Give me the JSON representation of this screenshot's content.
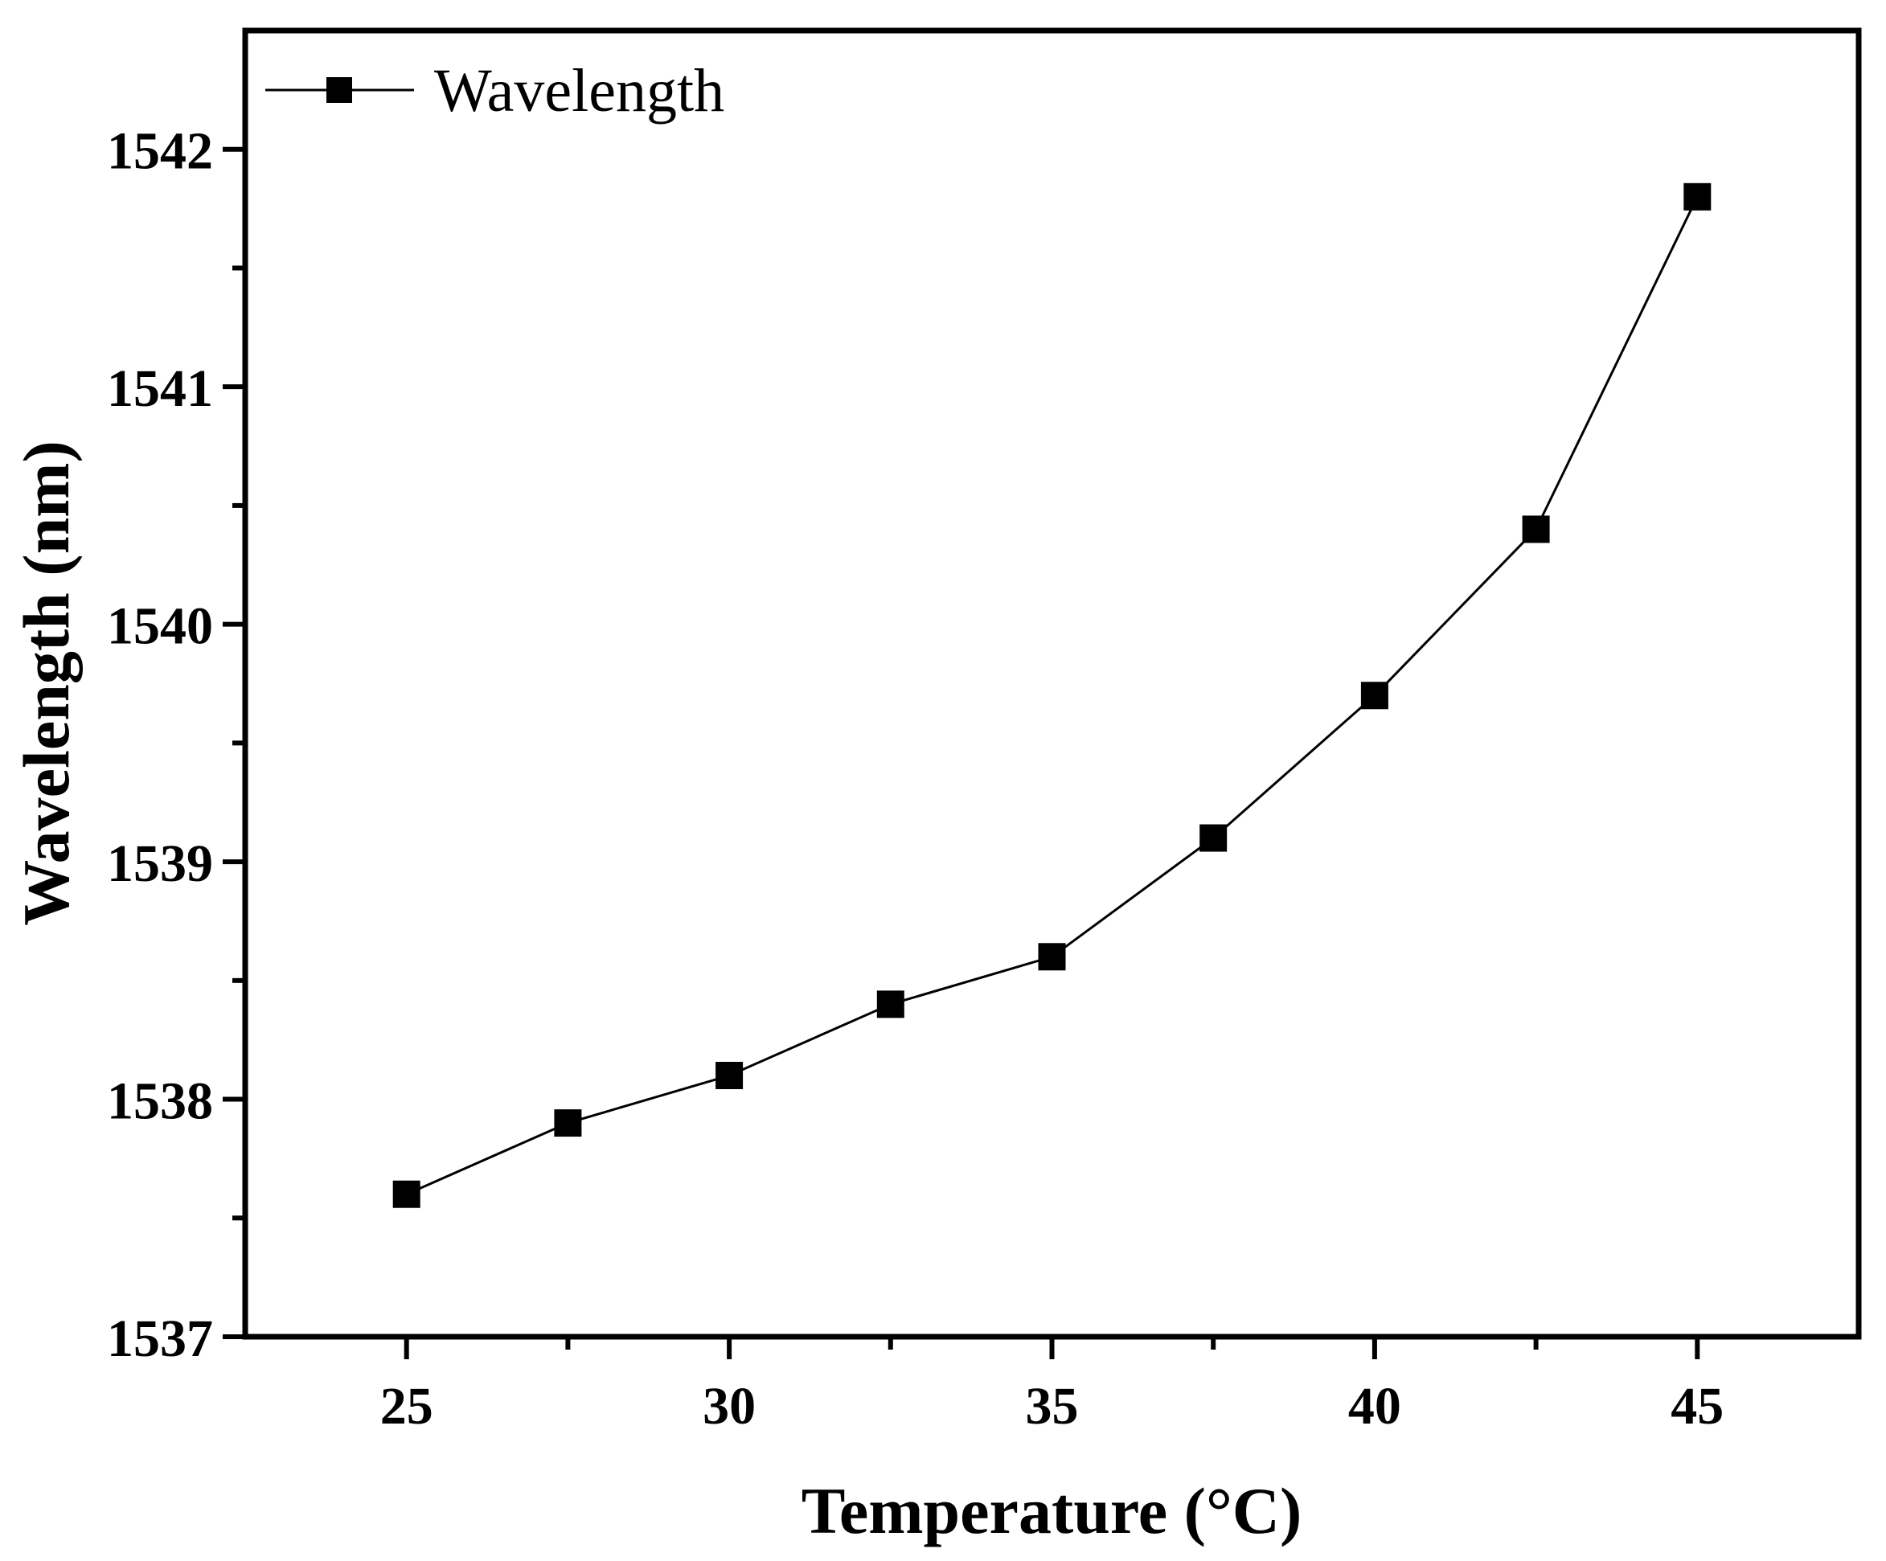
{
  "chart_data": {
    "type": "line",
    "title": "",
    "xlabel": "Temperature (°C)",
    "ylabel": "Wavelength (nm)",
    "xlim": [
      22.5,
      47.5
    ],
    "ylim": [
      1537,
      1542.5
    ],
    "xticks": [
      25,
      30,
      35,
      40,
      45
    ],
    "xtick_labels": [
      "25",
      "30",
      "35",
      "40",
      "45"
    ],
    "yticks": [
      1537,
      1538,
      1539,
      1540,
      1541,
      1542
    ],
    "ytick_labels": [
      "1537",
      "1538",
      "1539",
      "1540",
      "1541",
      "1542"
    ],
    "grid": false,
    "legend_position": "top-left",
    "series": [
      {
        "name": "Wavelength",
        "marker": "square",
        "color": "#000000",
        "x": [
          25,
          27.5,
          30,
          32.5,
          35,
          37.5,
          40,
          42.5,
          45
        ],
        "y": [
          1537.6,
          1537.9,
          1538.1,
          1538.4,
          1538.6,
          1539.1,
          1539.7,
          1540.4,
          1541.8
        ]
      }
    ]
  }
}
